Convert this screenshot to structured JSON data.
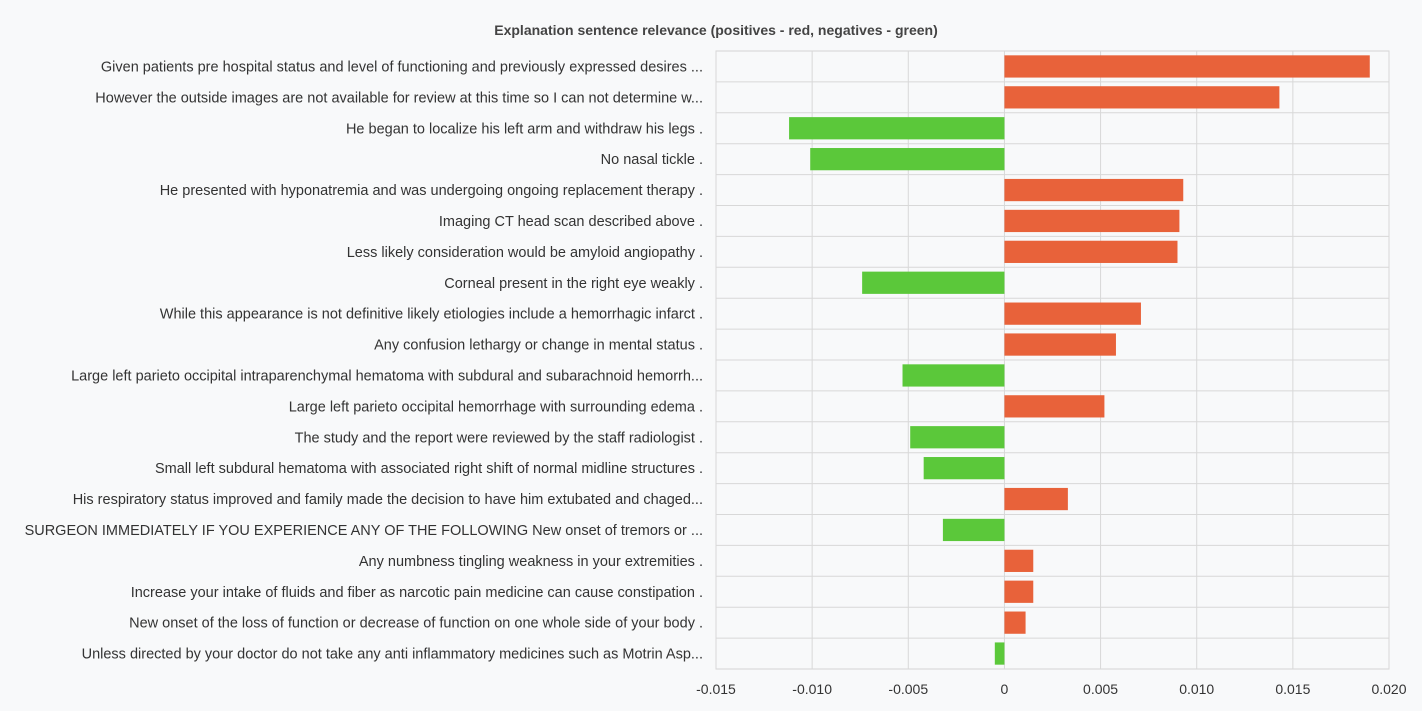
{
  "chart_data": {
    "type": "bar",
    "orientation": "horizontal",
    "title": "Explanation sentence relevance (positives - red, negatives - green)",
    "xlabel": "",
    "ylabel": "",
    "xlim": [
      -0.015,
      0.02
    ],
    "xticks": [
      -0.015,
      -0.01,
      -0.005,
      0,
      0.005,
      0.01,
      0.015,
      0.02
    ],
    "xtick_labels": [
      "-0.015",
      "-0.010",
      "-0.005",
      "0",
      "0.005",
      "0.010",
      "0.015",
      "0.020"
    ],
    "grid": true,
    "legend": "none",
    "colors": {
      "positive": "#e8623a",
      "negative": "#5bc83a"
    },
    "categories": [
      "Given patients pre hospital status and level of functioning and previously expressed desires ...",
      "However the outside images are not available for review at this time so I can not determine w...",
      "He began to localize his left arm and withdraw his legs .",
      "No nasal tickle .",
      "He presented with hyponatremia and was undergoing ongoing replacement therapy .",
      "Imaging CT head scan described above .",
      "Less likely consideration would be amyloid angiopathy .",
      "Corneal present in the right eye weakly .",
      "While this appearance is not definitive likely etiologies include a hemorrhagic infarct .",
      "Any confusion lethargy or change in mental status .",
      "Large left parieto occipital intraparenchymal hematoma with subdural and subarachnoid hemorrh...",
      "Large left parieto occipital hemorrhage with surrounding edema .",
      "The study and the report were reviewed by the staff radiologist .",
      "Small left subdural hematoma with associated right shift of normal midline structures .",
      "His respiratory status improved and family made the decision to have him extubated and chaged...",
      "SURGEON IMMEDIATELY IF YOU EXPERIENCE ANY OF THE FOLLOWING New onset of tremors or ...",
      "Any numbness tingling weakness in your extremities .",
      "Increase your intake of fluids and fiber as narcotic pain medicine can cause constipation .",
      "New onset of the loss of function or decrease of function on one whole side of your body .",
      "Unless directed by your doctor do not take any anti inflammatory medicines such as Motrin Asp..."
    ],
    "values": [
      0.019,
      0.0143,
      -0.0112,
      -0.0101,
      0.0093,
      0.0091,
      0.009,
      -0.0074,
      0.0071,
      0.0058,
      -0.0053,
      0.0052,
      -0.0049,
      -0.0042,
      0.0033,
      -0.0032,
      0.0015,
      0.0015,
      0.0011,
      -0.0005
    ]
  }
}
